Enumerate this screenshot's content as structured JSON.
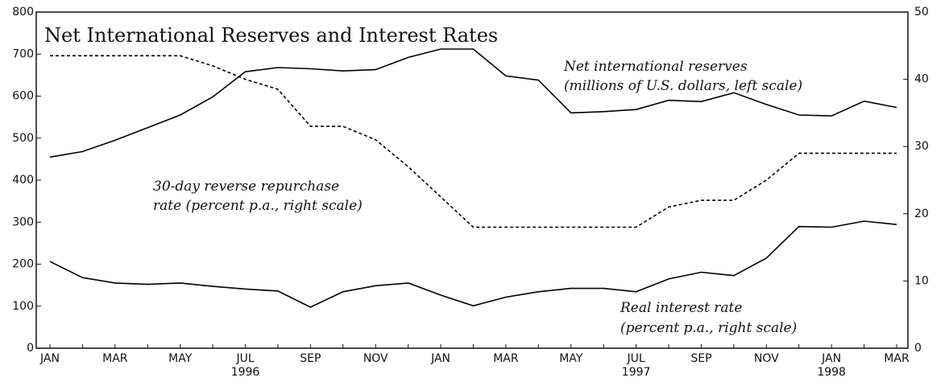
{
  "chart_data": {
    "type": "line",
    "title": "Net International Reserves and Interest Rates",
    "categories": [
      "JAN",
      null,
      "MAR",
      null,
      "MAY",
      null,
      "JUL",
      null,
      "SEP",
      null,
      "NOV",
      null,
      "JAN",
      null,
      "MAR",
      null,
      "MAY",
      null,
      "JUL",
      null,
      "SEP",
      null,
      "NOV",
      null,
      "JAN",
      null,
      "MAR"
    ],
    "year_labels": [
      null,
      null,
      null,
      null,
      null,
      null,
      "1996",
      null,
      null,
      null,
      null,
      null,
      null,
      null,
      null,
      null,
      null,
      null,
      "1997",
      null,
      null,
      null,
      null,
      null,
      "1998",
      null,
      null
    ],
    "series": [
      {
        "name": "Net international reserves",
        "color": "#000000",
        "dash": "solid",
        "values": [
          455,
          468,
          495,
          525,
          555,
          598,
          658,
          668,
          665,
          660,
          663,
          692,
          712,
          712,
          648,
          638,
          560,
          563,
          568,
          590,
          587,
          608,
          580,
          555,
          553,
          588,
          573
        ]
      },
      {
        "name": "30-day reverse repurchase rate",
        "color": "#000000",
        "dash": "dashed",
        "axis": "y2",
        "values": [
          43.5,
          43.5,
          43.5,
          43.5,
          43.5,
          42,
          40,
          38.5,
          33,
          33,
          31,
          27,
          22.5,
          18,
          18,
          18,
          18,
          18,
          18,
          21,
          22,
          22,
          25,
          29,
          29,
          29,
          29
        ]
      },
      {
        "name": "Real interest rate",
        "color": "#000000",
        "dash": "solid",
        "axis": "y2",
        "values": [
          12.9,
          10.5,
          9.7,
          9.5,
          9.7,
          9.2,
          8.8,
          8.5,
          6.1,
          8.4,
          9.3,
          9.7,
          7.9,
          6.3,
          7.6,
          8.4,
          8.9,
          8.9,
          8.4,
          10.3,
          11.3,
          10.8,
          13.4,
          18.1,
          18,
          18.9,
          18.4
        ]
      }
    ],
    "annotations": [
      {
        "lines": [
          "Net international reserves",
          "(millions of U.S. dollars, left scale)"
        ]
      },
      {
        "lines": [
          "30-day reverse repurchase",
          "rate (percent p.a., right scale)"
        ]
      },
      {
        "lines": [
          "Real interest rate",
          "(percent p.a., right scale)"
        ]
      }
    ],
    "ylim": [
      0,
      800
    ],
    "yticks": [
      0,
      100,
      200,
      300,
      400,
      500,
      600,
      700,
      800
    ],
    "y2lim": [
      0,
      50
    ],
    "y2ticks": [
      0,
      10,
      20,
      30,
      40,
      50
    ]
  }
}
